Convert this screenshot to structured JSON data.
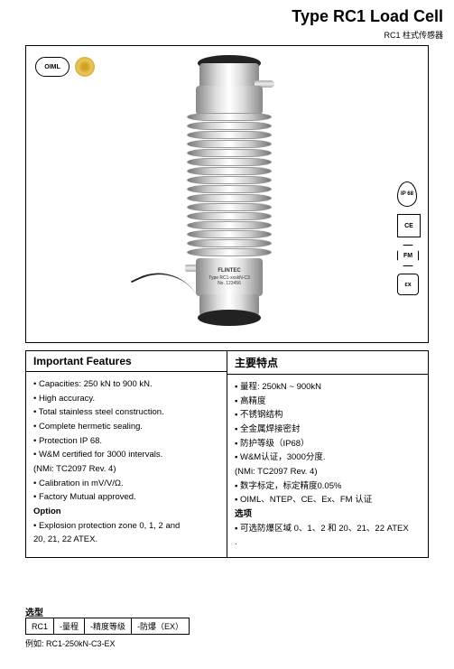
{
  "title": "Type RC1 Load Cell",
  "subtitle": "RC1 柱式传感器",
  "product_brand": "FLINTEC",
  "product_label1": "Type  RC1-xxxkN-C3",
  "product_label2": "No.  123456",
  "certs_left": {
    "oiml": "OIML"
  },
  "certs_right": [
    {
      "name": "ip68-badge",
      "text": "IP 68",
      "cls": "drop"
    },
    {
      "name": "ce-badge",
      "text": "CE",
      "cls": ""
    },
    {
      "name": "fm-badge",
      "text": "FM",
      "cls": "oct"
    },
    {
      "name": "ex-badge",
      "text": "εx",
      "cls": "hex"
    }
  ],
  "features": {
    "left_header": "Important Features",
    "right_header": "主要特点",
    "left_items": [
      "• Capacities: 250 kN to 900 kN.",
      "• High accuracy.",
      "• Total stainless steel construction.",
      "• Complete hermetic sealing.",
      "• Protection IP 68.",
      "• W&M certified for 3000 intervals.",
      "(NMi: TC2097 Rev. 4)",
      "• Calibration in mV/V/Ω.",
      "• Factory Mutual approved."
    ],
    "left_option_header": "Option",
    "left_option_items": [
      "• Explosion protection zone 0, 1, 2 and",
      "20, 21, 22 ATEX."
    ],
    "right_items": [
      "▪ 量程: 250kN ~ 900kN",
      "▪ 高精度",
      "▪ 不锈钢结构",
      "▪ 全金属焊接密封",
      "▪ 防护等级（IP68）",
      "▪ W&M认证，3000分度.",
      "  (NMi: TC2097 Rev. 4)",
      "▪ 数字标定，标定精度0.05%",
      "▪ OIML、NTEP、CE、Ex、FM 认证"
    ],
    "right_option_header": "选项",
    "right_option_items": [
      "▪ 可选防爆区域 0、1、2 和 20、21、22 ATEX",
      "."
    ]
  },
  "order": {
    "label": "选型",
    "cells": [
      "RC1",
      "-量程",
      "-精度等级",
      "-防爆（EX）"
    ],
    "example_label": "例如:",
    "example_value": "RC1-250kN-C3-EX"
  },
  "colors": {
    "border": "#000000",
    "bg": "#ffffff",
    "metal_dark": "#888888",
    "metal_light": "#ffffff"
  }
}
